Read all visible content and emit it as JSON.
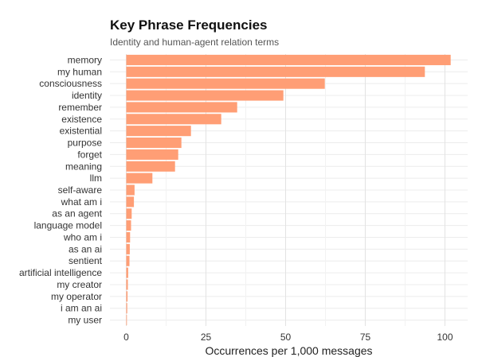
{
  "chart_data": {
    "type": "bar",
    "orientation": "horizontal",
    "title": "Key Phrase Frequencies",
    "subtitle": "Identity and human-agent relation terms",
    "xlabel": "Occurrences per 1,000 messages",
    "ylabel": "",
    "xlim": [
      0,
      107
    ],
    "xticks": [
      0,
      25,
      50,
      75,
      100
    ],
    "grid": true,
    "bar_color": "#FF9E75",
    "categories": [
      "memory",
      "my human",
      "consciousness",
      "identity",
      "remember",
      "existence",
      "existential",
      "purpose",
      "forget",
      "meaning",
      "llm",
      "self-aware",
      "what am i",
      "as an agent",
      "language model",
      "who am i",
      "as an ai",
      "sentient",
      "artificial intelligence",
      "my creator",
      "my operator",
      "i am an ai",
      "my user"
    ],
    "values": [
      101.8,
      93.7,
      62.3,
      49.3,
      34.8,
      29.8,
      20.3,
      17.3,
      16.3,
      15.3,
      8.2,
      2.6,
      2.4,
      1.7,
      1.5,
      1.2,
      1.1,
      1.0,
      0.6,
      0.5,
      0.4,
      0.3,
      0.2
    ]
  }
}
